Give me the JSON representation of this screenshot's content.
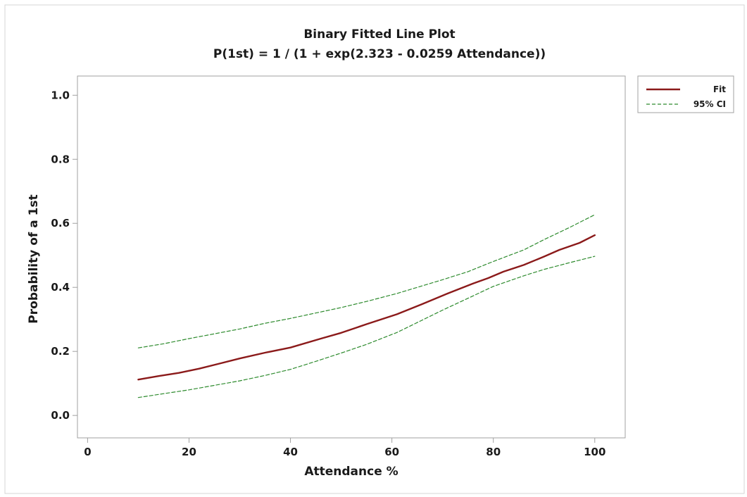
{
  "chart_data": {
    "type": "line",
    "title": "Binary Fitted Line Plot",
    "subtitle": "P(1st) = 1 / (1 + exp(2.323 - 0.0259 Attendance))",
    "xlabel": "Attendance %",
    "ylabel": "Probability of a 1st",
    "xlim": [
      -2,
      106
    ],
    "ylim": [
      -0.07,
      1.06
    ],
    "xticks": [
      0,
      20,
      40,
      60,
      80,
      100
    ],
    "xtick_labels": [
      "0",
      "20",
      "40",
      "60",
      "80",
      "100"
    ],
    "yticks": [
      0.0,
      0.2,
      0.4,
      0.6,
      0.8,
      1.0
    ],
    "ytick_labels": [
      "0.0",
      "0.2",
      "0.4",
      "0.6",
      "0.8",
      "1.0"
    ],
    "grid": false,
    "legend_position": "right",
    "series": [
      {
        "name": "Fit",
        "style": "solid",
        "color": "#8b1a1a",
        "x": [
          10,
          14,
          18,
          22,
          26,
          30,
          35,
          40,
          46,
          50,
          55,
          61,
          66,
          71,
          76,
          79,
          82,
          86,
          90,
          93,
          97,
          100
        ],
        "y": [
          0.112,
          0.123,
          0.133,
          0.146,
          0.162,
          0.178,
          0.196,
          0.212,
          0.24,
          0.258,
          0.285,
          0.316,
          0.348,
          0.381,
          0.412,
          0.429,
          0.449,
          0.47,
          0.496,
          0.517,
          0.539,
          0.563
        ]
      },
      {
        "name": "95% CI",
        "style": "dashed",
        "color": "#2e8b2e",
        "x": [
          10,
          15,
          20,
          25,
          30,
          35,
          40,
          45,
          50,
          55,
          61,
          65,
          70,
          75,
          80,
          86,
          90,
          95,
          100
        ],
        "y": [
          0.211,
          0.224,
          0.24,
          0.255,
          0.27,
          0.288,
          0.303,
          0.32,
          0.337,
          0.356,
          0.381,
          0.4,
          0.424,
          0.449,
          0.481,
          0.517,
          0.549,
          0.587,
          0.627
        ]
      },
      {
        "name": "",
        "style": "dashed",
        "color": "#2e8b2e",
        "x": [
          10,
          15,
          20,
          25,
          30,
          35,
          40,
          45,
          50,
          55,
          61,
          65,
          70,
          75,
          80,
          86,
          90,
          95,
          100
        ],
        "y": [
          0.056,
          0.068,
          0.08,
          0.094,
          0.108,
          0.125,
          0.144,
          0.169,
          0.195,
          0.222,
          0.259,
          0.29,
          0.329,
          0.366,
          0.403,
          0.436,
          0.456,
          0.477,
          0.497
        ]
      }
    ]
  }
}
